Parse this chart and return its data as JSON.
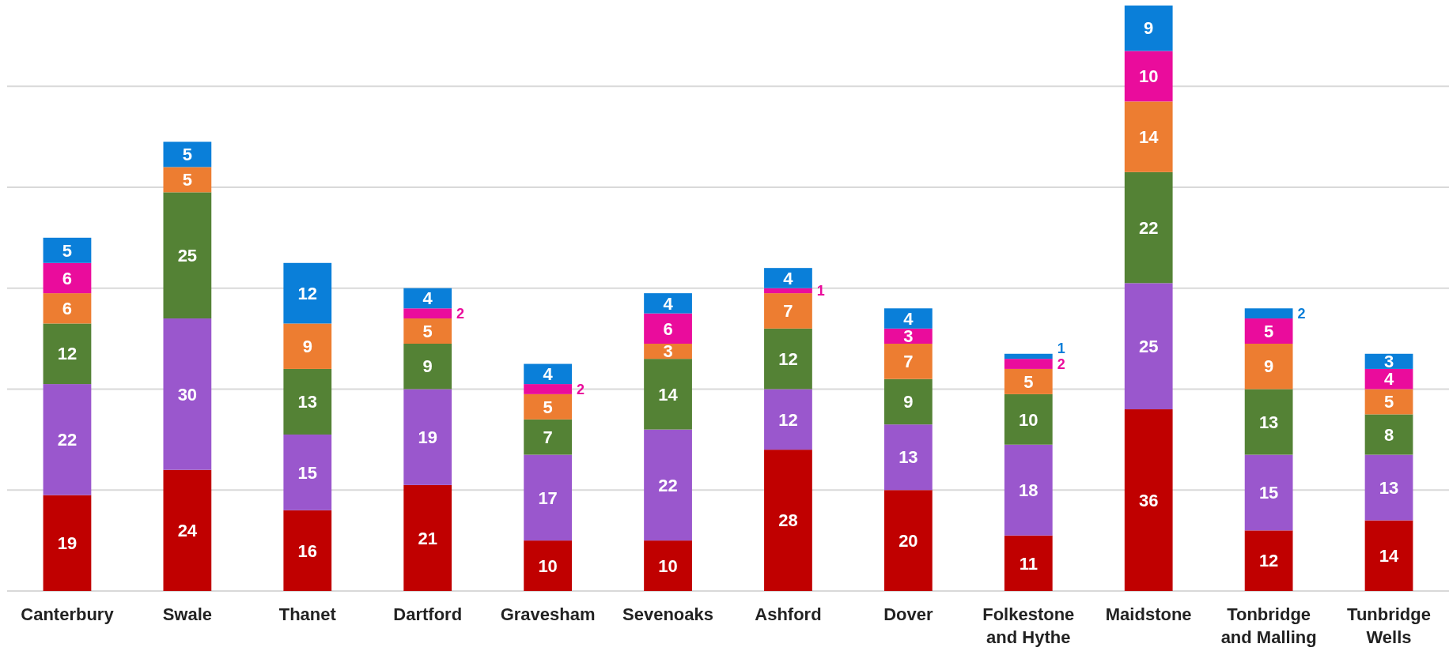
{
  "chart_data": {
    "type": "bar",
    "stacked": true,
    "categories": [
      "Canterbury",
      "Swale",
      "Thanet",
      "Dartford",
      "Gravesham",
      "Sevenoaks",
      "Ashford",
      "Dover",
      "Folkestone and Hythe",
      "Maidstone",
      "Tonbridge and Malling",
      "Tunbridge Wells"
    ],
    "series": [
      {
        "color": "#c00000",
        "values": [
          19,
          24,
          16,
          21,
          10,
          10,
          28,
          20,
          11,
          36,
          12,
          14
        ]
      },
      {
        "color": "#9a57cd",
        "values": [
          22,
          30,
          15,
          19,
          17,
          22,
          12,
          13,
          18,
          25,
          15,
          13
        ]
      },
      {
        "color": "#548235",
        "values": [
          12,
          25,
          13,
          9,
          7,
          14,
          12,
          9,
          10,
          22,
          13,
          8
        ]
      },
      {
        "color": "#ed7d31",
        "values": [
          6,
          5,
          9,
          5,
          5,
          3,
          7,
          7,
          5,
          14,
          9,
          5
        ]
      },
      {
        "color": "#ea0c9c",
        "values": [
          6,
          null,
          null,
          2,
          2,
          6,
          1,
          3,
          2,
          10,
          5,
          4
        ]
      },
      {
        "color": "#0a7fd9",
        "values": [
          5,
          5,
          12,
          4,
          4,
          4,
          4,
          4,
          1,
          9,
          2,
          3
        ]
      }
    ],
    "ylim": [
      0,
      116
    ],
    "yticks": [
      0,
      20,
      40,
      60,
      80,
      100
    ],
    "grid": "y",
    "tick_labels": "x",
    "data_labels": true
  }
}
